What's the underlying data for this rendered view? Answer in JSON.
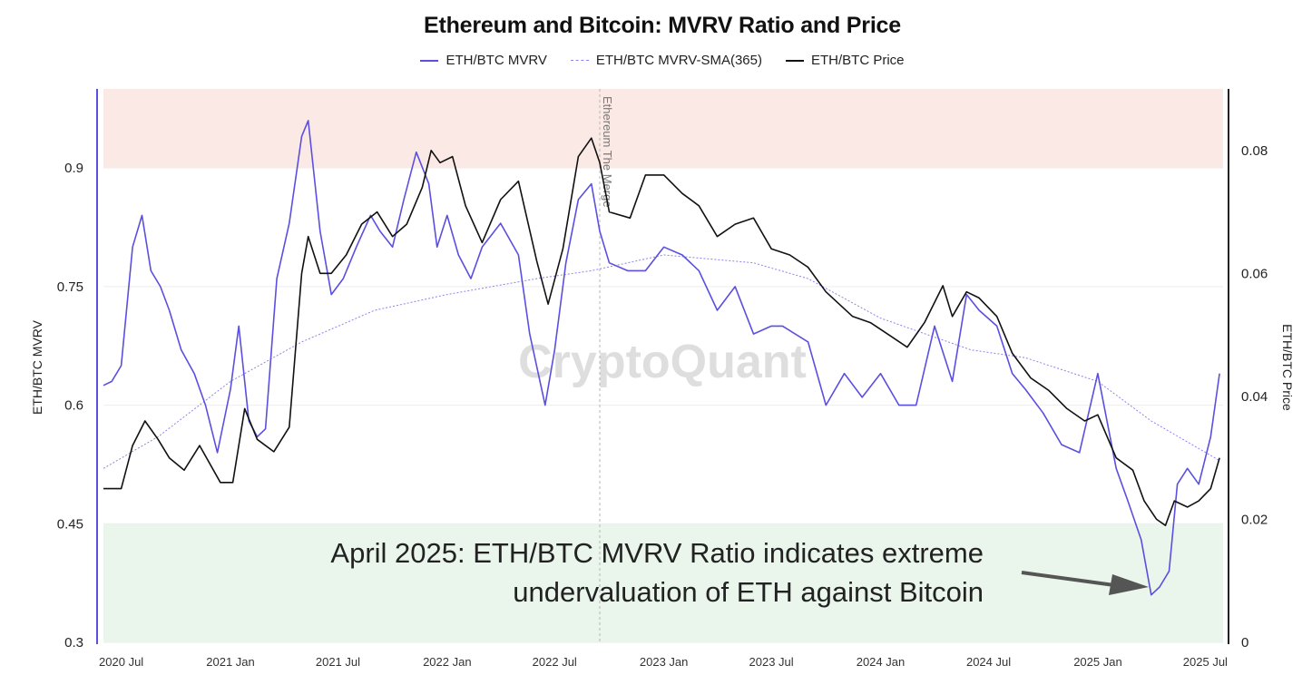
{
  "chart_data": {
    "type": "line",
    "title": "Ethereum and Bitcoin: MVRV Ratio and Price",
    "legend": [
      "ETH/BTC MVRV",
      "ETH/BTC MVRV-SMA(365)",
      "ETH/BTC Price"
    ],
    "legend_placement": "top-center",
    "left_axis": {
      "label": "ETH/BTC MVRV",
      "range": [
        0.3,
        1.0
      ],
      "ticks": [
        "0.3",
        "0.45",
        "0.6",
        "0.75",
        "0.9"
      ]
    },
    "right_axis": {
      "label": "ETH/BTC Price",
      "range": [
        0,
        0.09
      ],
      "ticks": [
        "0",
        "0.02",
        "0.04",
        "0.06",
        "0.08"
      ]
    },
    "x_axis": {
      "range": [
        "2020-06-01",
        "2025-07-31"
      ],
      "ticks": [
        "2020 Jul",
        "2021 Jan",
        "2021 Jul",
        "2022 Jan",
        "2022 Jul",
        "2023 Jan",
        "2023 Jul",
        "2024 Jan",
        "2024 Jul",
        "2025 Jan",
        "2025 Jul"
      ]
    },
    "bands": [
      {
        "name": "overvalued",
        "from": 0.9,
        "to": 1.0,
        "color": "#fbe9e5"
      },
      {
        "name": "undervalued",
        "from": 0.3,
        "to": 0.45,
        "color": "#eaf5ec"
      }
    ],
    "event": {
      "label": "Ethereum The Merge",
      "date": "2022-09-15"
    },
    "watermark": "CryptoQuant",
    "annotation": [
      "April 2025: ETH/BTC MVRV Ratio indicates extreme",
      "undervaluation of ETH against Bitcoin"
    ],
    "colors": {
      "mvrv": "#5a4fe0",
      "sma": "#8b84ee",
      "price": "#111111"
    },
    "series": [
      {
        "name": "ETH/BTC MVRV",
        "axis": "left",
        "x": [
          "2020-06-01",
          "2020-06-15",
          "2020-07-01",
          "2020-07-20",
          "2020-08-05",
          "2020-08-20",
          "2020-09-05",
          "2020-09-20",
          "2020-10-10",
          "2020-11-01",
          "2020-11-20",
          "2020-12-10",
          "2021-01-01",
          "2021-01-15",
          "2021-02-01",
          "2021-02-15",
          "2021-03-01",
          "2021-03-20",
          "2021-04-10",
          "2021-05-01",
          "2021-05-12",
          "2021-06-01",
          "2021-06-20",
          "2021-07-10",
          "2021-08-01",
          "2021-08-25",
          "2021-09-10",
          "2021-10-01",
          "2021-10-20",
          "2021-11-10",
          "2021-12-01",
          "2021-12-15",
          "2022-01-01",
          "2022-01-20",
          "2022-02-10",
          "2022-03-01",
          "2022-04-01",
          "2022-05-01",
          "2022-05-20",
          "2022-06-15",
          "2022-07-01",
          "2022-07-20",
          "2022-08-10",
          "2022-09-01",
          "2022-09-15",
          "2022-10-01",
          "2022-11-01",
          "2022-12-01",
          "2023-01-01",
          "2023-02-01",
          "2023-03-01",
          "2023-04-01",
          "2023-05-01",
          "2023-06-01",
          "2023-07-01",
          "2023-07-20",
          "2023-09-01",
          "2023-10-01",
          "2023-11-01",
          "2023-12-01",
          "2024-01-01",
          "2024-02-01",
          "2024-03-01",
          "2024-04-01",
          "2024-05-01",
          "2024-05-25",
          "2024-06-15",
          "2024-07-15",
          "2024-08-10",
          "2024-09-01",
          "2024-10-01",
          "2024-11-01",
          "2024-12-01",
          "2025-01-01",
          "2025-02-01",
          "2025-02-20",
          "2025-03-15",
          "2025-04-01",
          "2025-04-15",
          "2025-05-01",
          "2025-05-15",
          "2025-06-01",
          "2025-06-20",
          "2025-07-10",
          "2025-07-25"
        ],
        "values": [
          0.625,
          0.63,
          0.65,
          0.8,
          0.84,
          0.77,
          0.75,
          0.72,
          0.67,
          0.64,
          0.6,
          0.54,
          0.62,
          0.7,
          0.58,
          0.56,
          0.57,
          0.76,
          0.83,
          0.94,
          0.96,
          0.82,
          0.74,
          0.76,
          0.8,
          0.84,
          0.82,
          0.8,
          0.86,
          0.92,
          0.88,
          0.8,
          0.84,
          0.79,
          0.76,
          0.8,
          0.83,
          0.79,
          0.69,
          0.6,
          0.67,
          0.78,
          0.86,
          0.88,
          0.82,
          0.78,
          0.77,
          0.77,
          0.8,
          0.79,
          0.77,
          0.72,
          0.75,
          0.69,
          0.7,
          0.7,
          0.68,
          0.6,
          0.64,
          0.61,
          0.64,
          0.6,
          0.6,
          0.7,
          0.63,
          0.74,
          0.72,
          0.7,
          0.64,
          0.62,
          0.59,
          0.55,
          0.54,
          0.64,
          0.52,
          0.48,
          0.43,
          0.36,
          0.37,
          0.39,
          0.5,
          0.52,
          0.5,
          0.56,
          0.64
        ]
      },
      {
        "name": "ETH/BTC MVRV-SMA(365)",
        "axis": "left",
        "x": [
          "2020-06-01",
          "2020-09-01",
          "2021-01-01",
          "2021-05-01",
          "2021-09-01",
          "2022-01-01",
          "2022-06-01",
          "2022-09-01",
          "2023-01-01",
          "2023-06-01",
          "2023-09-01",
          "2024-01-01",
          "2024-06-01",
          "2024-09-01",
          "2025-01-01",
          "2025-04-01",
          "2025-07-25"
        ],
        "values": [
          0.52,
          0.56,
          0.63,
          0.68,
          0.72,
          0.74,
          0.76,
          0.77,
          0.79,
          0.78,
          0.76,
          0.71,
          0.67,
          0.66,
          0.63,
          0.58,
          0.53
        ]
      },
      {
        "name": "ETH/BTC Price",
        "axis": "right",
        "x": [
          "2020-06-01",
          "2020-07-01",
          "2020-07-20",
          "2020-08-10",
          "2020-09-01",
          "2020-09-20",
          "2020-10-15",
          "2020-11-10",
          "2020-12-15",
          "2021-01-05",
          "2021-01-25",
          "2021-02-15",
          "2021-03-15",
          "2021-04-10",
          "2021-05-01",
          "2021-05-12",
          "2021-06-01",
          "2021-06-20",
          "2021-07-15",
          "2021-08-10",
          "2021-09-05",
          "2021-10-01",
          "2021-10-25",
          "2021-11-20",
          "2021-12-05",
          "2021-12-20",
          "2022-01-10",
          "2022-02-01",
          "2022-03-01",
          "2022-04-01",
          "2022-05-01",
          "2022-06-01",
          "2022-06-20",
          "2022-07-15",
          "2022-08-10",
          "2022-09-01",
          "2022-09-15",
          "2022-10-01",
          "2022-11-05",
          "2022-12-01",
          "2023-01-01",
          "2023-02-01",
          "2023-03-01",
          "2023-04-01",
          "2023-05-01",
          "2023-06-01",
          "2023-07-01",
          "2023-08-01",
          "2023-09-01",
          "2023-10-01",
          "2023-11-15",
          "2023-12-15",
          "2024-01-15",
          "2024-02-15",
          "2024-03-15",
          "2024-04-15",
          "2024-05-01",
          "2024-05-25",
          "2024-06-15",
          "2024-07-15",
          "2024-08-10",
          "2024-09-10",
          "2024-10-10",
          "2024-11-10",
          "2024-12-10",
          "2025-01-01",
          "2025-02-01",
          "2025-03-01",
          "2025-03-20",
          "2025-04-10",
          "2025-04-25",
          "2025-05-10",
          "2025-06-01",
          "2025-06-20",
          "2025-07-10",
          "2025-07-25"
        ],
        "values": [
          0.025,
          0.025,
          0.032,
          0.036,
          0.033,
          0.03,
          0.028,
          0.032,
          0.026,
          0.026,
          0.038,
          0.033,
          0.031,
          0.035,
          0.06,
          0.066,
          0.06,
          0.06,
          0.063,
          0.068,
          0.07,
          0.066,
          0.068,
          0.074,
          0.08,
          0.078,
          0.079,
          0.071,
          0.065,
          0.072,
          0.075,
          0.062,
          0.055,
          0.064,
          0.079,
          0.082,
          0.078,
          0.07,
          0.069,
          0.076,
          0.076,
          0.073,
          0.071,
          0.066,
          0.068,
          0.069,
          0.064,
          0.063,
          0.061,
          0.057,
          0.053,
          0.052,
          0.05,
          0.048,
          0.052,
          0.058,
          0.053,
          0.057,
          0.056,
          0.053,
          0.047,
          0.043,
          0.041,
          0.038,
          0.036,
          0.037,
          0.03,
          0.028,
          0.023,
          0.02,
          0.019,
          0.023,
          0.022,
          0.023,
          0.025,
          0.03
        ]
      }
    ]
  }
}
